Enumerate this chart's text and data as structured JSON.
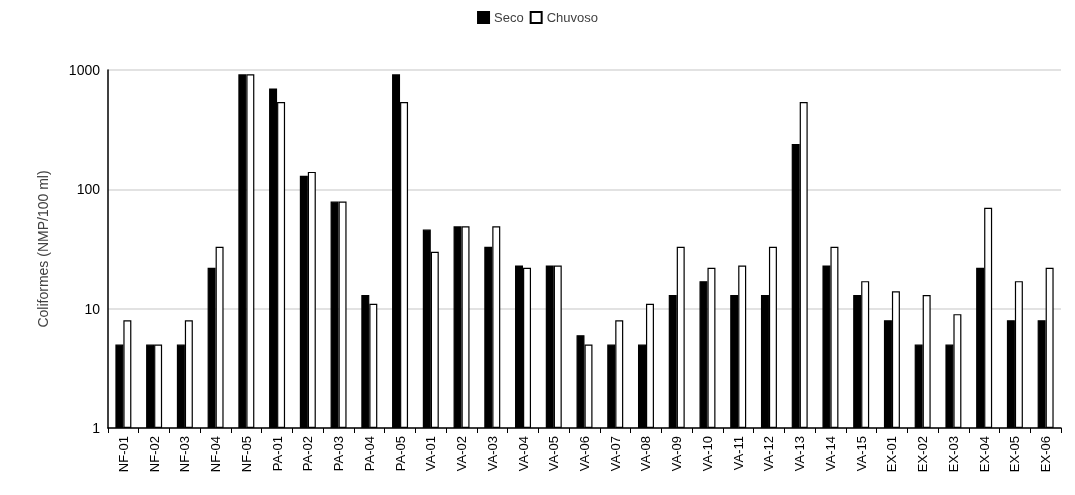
{
  "chart_data": {
    "type": "bar",
    "ylabel": "Coliformes (NMP/100 ml)",
    "categories": [
      "NF-01",
      "NF-02",
      "NF-03",
      "NF-04",
      "NF-05",
      "PA-01",
      "PA-02",
      "PA-03",
      "PA-04",
      "PA-05",
      "VA-01",
      "VA-02",
      "VA-03",
      "VA-04",
      "VA-05",
      "VA-06",
      "VA-07",
      "VA-08",
      "VA-09",
      "VA-10",
      "VA-11",
      "VA-12",
      "VA-13",
      "VA-14",
      "VA-15",
      "EX-01",
      "EX-02",
      "EX-03",
      "EX-04",
      "EX-05",
      "EX-06"
    ],
    "series": [
      {
        "name": "Seco",
        "color": "#000000",
        "values": [
          5,
          5,
          5,
          22,
          920,
          700,
          130,
          79,
          13,
          920,
          46,
          49,
          33,
          23,
          23,
          6,
          5,
          5,
          13,
          17,
          13,
          13,
          240,
          23,
          13,
          8,
          5,
          5,
          22,
          8,
          8
        ]
      },
      {
        "name": "Chuvoso",
        "color": "#ffffff",
        "values": [
          8,
          5,
          8,
          33,
          920,
          540,
          140,
          79,
          11,
          540,
          30,
          49,
          49,
          22,
          23,
          5,
          8,
          11,
          33,
          22,
          23,
          33,
          540,
          33,
          17,
          14,
          13,
          9,
          70,
          17,
          22
        ]
      }
    ],
    "log": "y",
    "ylim": [
      1,
      1000
    ],
    "yticks": [
      1,
      10,
      100,
      1000
    ],
    "grid": "y",
    "legend": "top"
  }
}
